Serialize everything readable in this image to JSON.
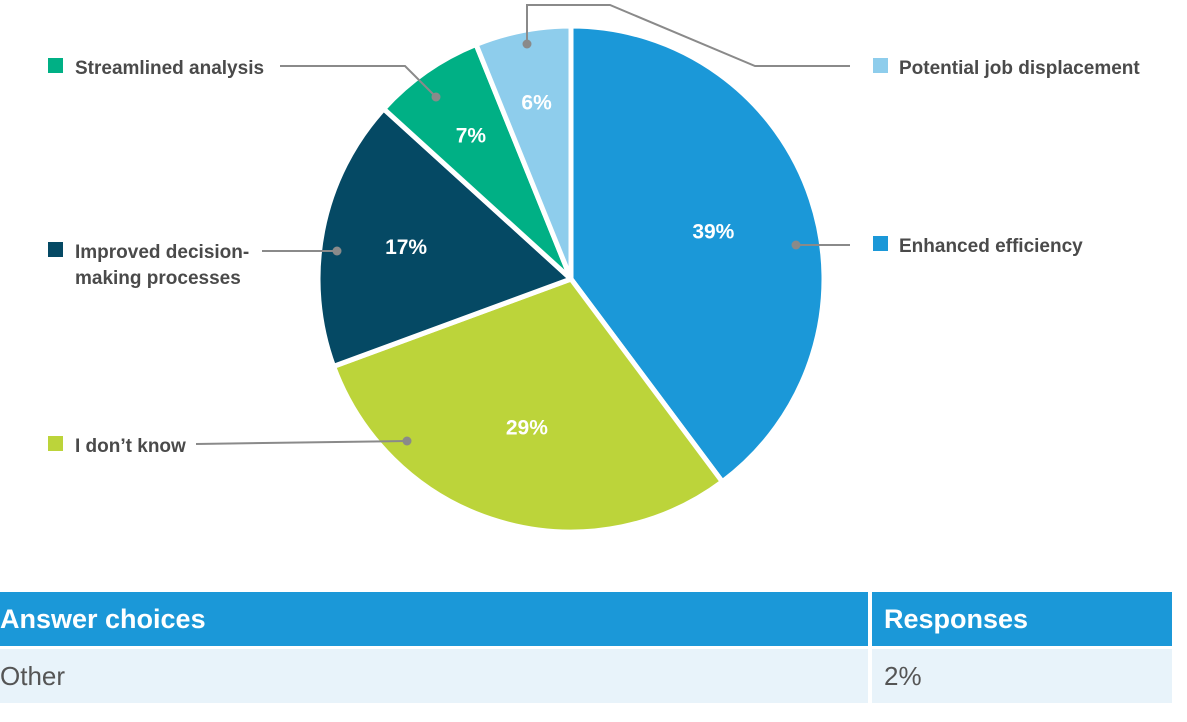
{
  "chart_data": {
    "type": "pie",
    "slices": [
      {
        "label": "Enhanced efficiency",
        "value": 39,
        "value_label": "39%",
        "color": "#1b98d8"
      },
      {
        "label": "I don’t know",
        "value": 29,
        "value_label": "29%",
        "color": "#bcd43a"
      },
      {
        "label": "Improved decision-making processes",
        "label_lines": [
          "Improved decision-",
          "making processes"
        ],
        "value": 17,
        "value_label": "17%",
        "color": "#054964"
      },
      {
        "label": "Streamlined analysis",
        "value": 7,
        "value_label": "7%",
        "color": "#00b085"
      },
      {
        "label": "Potential job displacement",
        "value": 6,
        "value_label": "6%",
        "color": "#8ecdec"
      }
    ]
  },
  "table": {
    "headers": [
      "Answer choices",
      "Responses"
    ],
    "rows": [
      [
        "Other",
        "2%"
      ]
    ]
  }
}
